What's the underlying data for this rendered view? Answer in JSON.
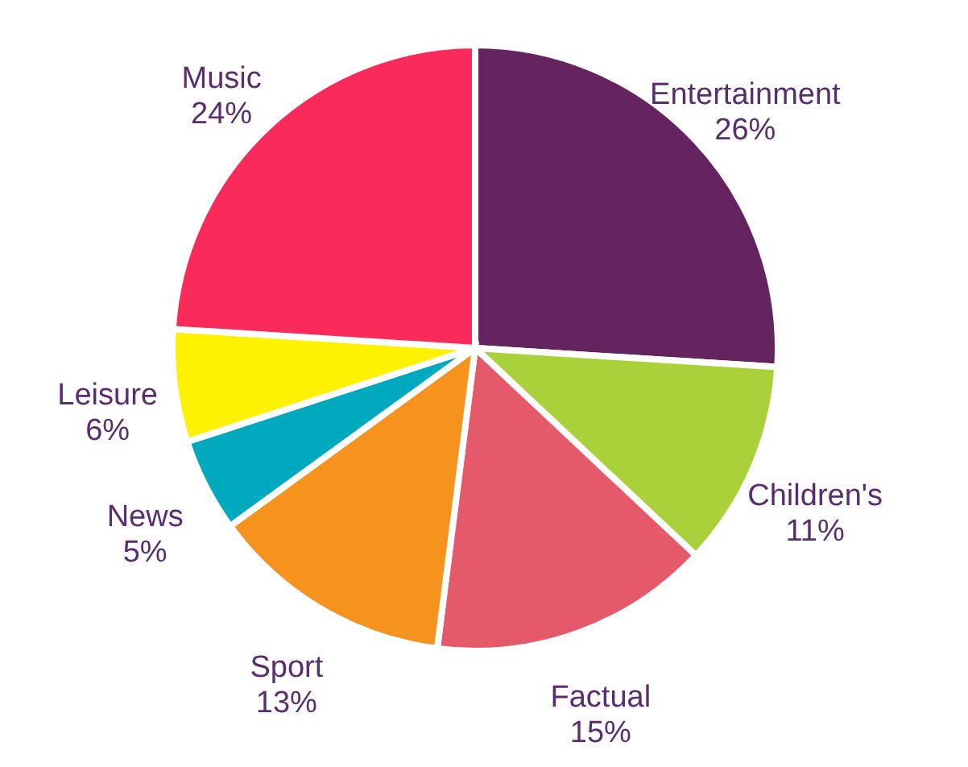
{
  "chart_data": {
    "type": "pie",
    "categories": [
      "Entertainment",
      "Children's",
      "Factual",
      "Sport",
      "News",
      "Leisure",
      "Music"
    ],
    "values": [
      26,
      11,
      15,
      13,
      5,
      6,
      24
    ],
    "value_labels": [
      "26%",
      "11%",
      "15%",
      "13%",
      "5%",
      "6%",
      "24%"
    ],
    "colors": [
      "#63245f",
      "#a8d13a",
      "#e45a6a",
      "#f6921e",
      "#00a9bd",
      "#fff200",
      "#fa2a5a"
    ]
  }
}
